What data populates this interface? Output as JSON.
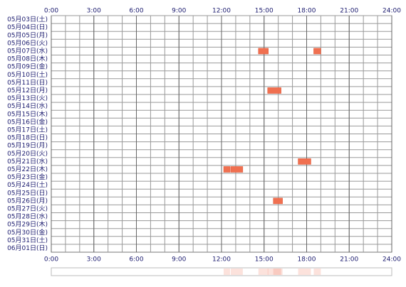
{
  "chart_data": {
    "type": "timeline",
    "categories": [
      "05月03日(土)",
      "05月04日(日)",
      "05月05日(月)",
      "05月06日(火)",
      "05月07日(水)",
      "05月08日(木)",
      "05月09日(金)",
      "05月10日(土)",
      "05月11日(日)",
      "05月12日(月)",
      "05月13日(火)",
      "05月14日(水)",
      "05月15日(木)",
      "05月16日(金)",
      "05月17日(土)",
      "05月18日(日)",
      "05月19日(月)",
      "05月20日(火)",
      "05月21日(水)",
      "05月22日(木)",
      "05月23日(金)",
      "05月24日(土)",
      "05月25日(日)",
      "05月26日(月)",
      "05月27日(火)",
      "05月28日(水)",
      "05月29日(木)",
      "05月30日(金)",
      "05月31日(土)",
      "06月01日(日)"
    ],
    "values": [
      [],
      [],
      [],
      [],
      [
        [
          14.6,
          15.3
        ],
        [
          18.5,
          19.0
        ]
      ],
      [],
      [],
      [],
      [],
      [
        [
          15.25,
          16.2
        ]
      ],
      [],
      [],
      [],
      [],
      [],
      [],
      [],
      [],
      [
        [
          17.4,
          18.3
        ]
      ],
      [
        [
          12.15,
          12.6
        ],
        [
          12.65,
          13.5
        ]
      ],
      [],
      [],
      [],
      [
        [
          15.65,
          16.3
        ]
      ],
      [],
      [],
      [],
      [],
      [],
      []
    ],
    "color": "#f07050",
    "xlim": [
      0,
      24
    ],
    "xticks": [
      {
        "value": 0,
        "label": "0:00"
      },
      {
        "value": 3,
        "label": "3:00"
      },
      {
        "value": 6,
        "label": "6:00"
      },
      {
        "value": 9,
        "label": "9:00"
      },
      {
        "value": 12,
        "label": "12:00"
      },
      {
        "value": 15,
        "label": "15:00"
      },
      {
        "value": 18,
        "label": "18:00"
      },
      {
        "value": 21,
        "label": "21:00"
      },
      {
        "value": 24,
        "label": "24:00"
      }
    ]
  }
}
